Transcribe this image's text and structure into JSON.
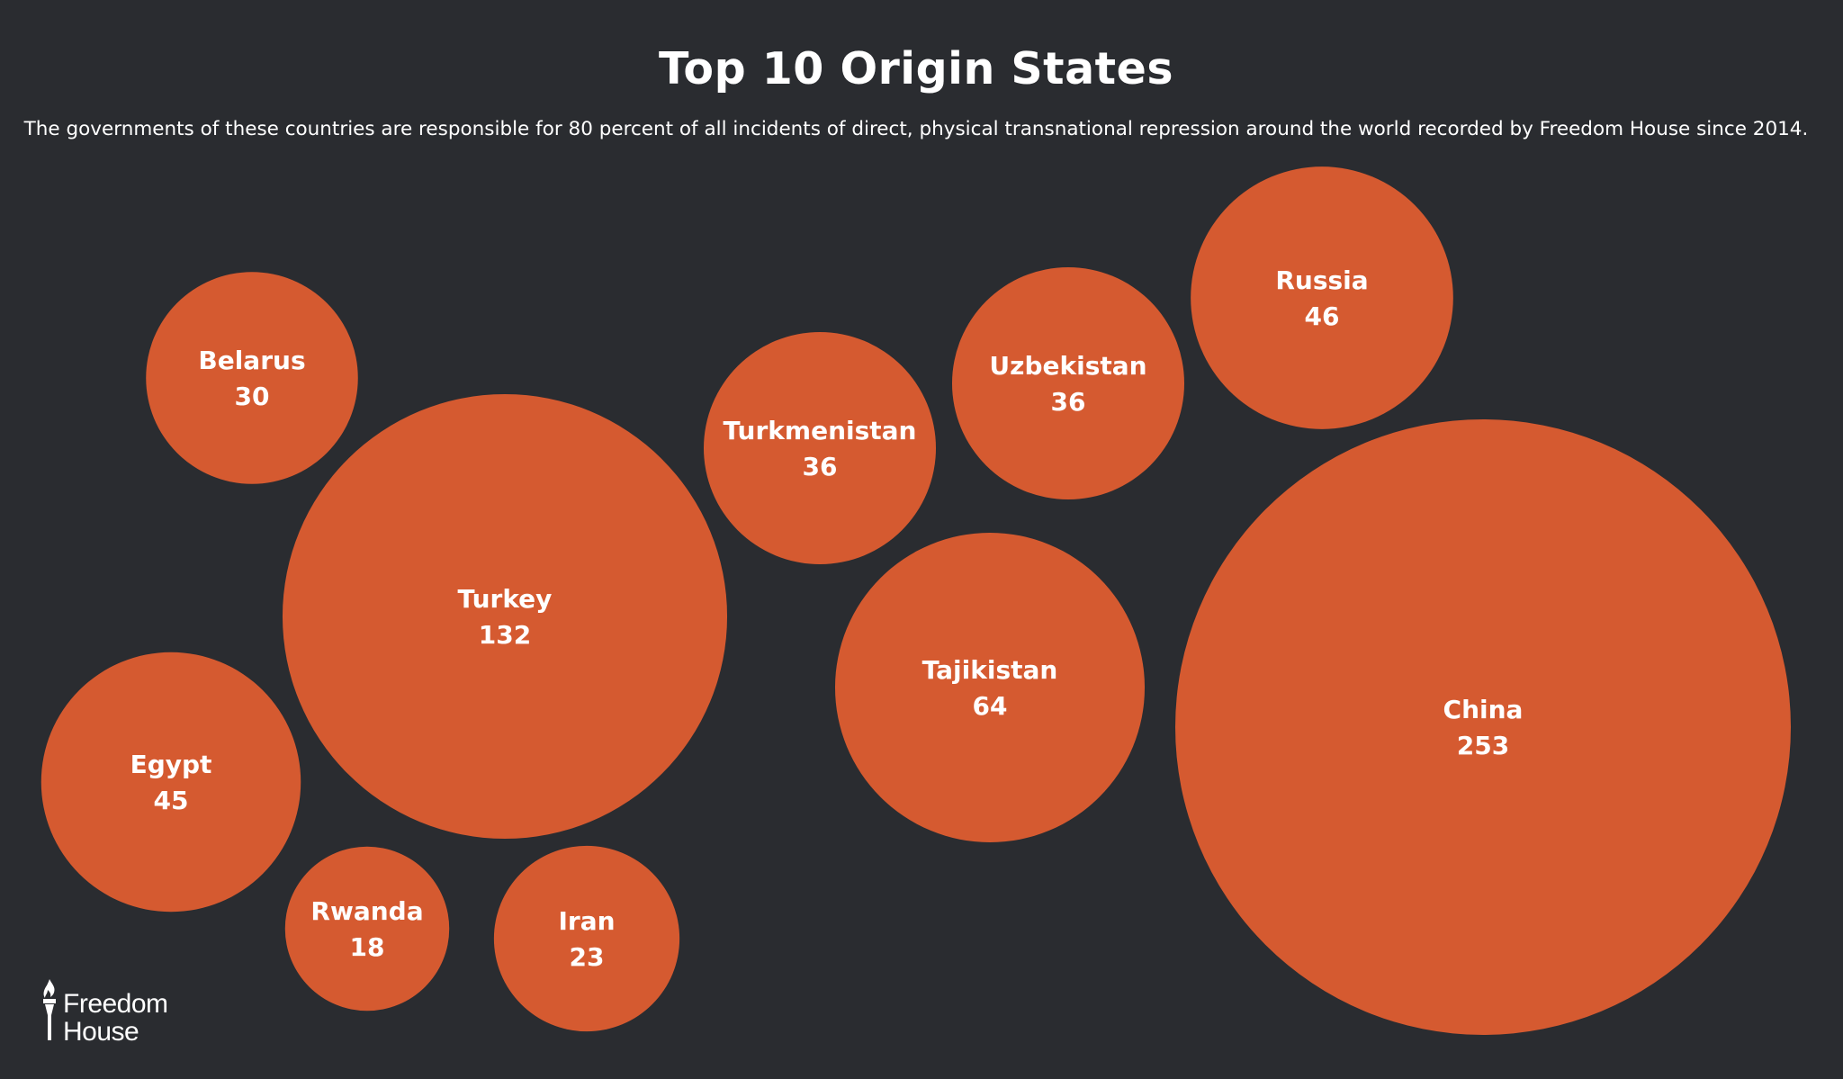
{
  "title": "Top 10 Origin States",
  "subtitle": "The governments of these countries are responsible for 80 percent of all incidents of direct, physical transnational repression around the world recorded by Freedom House since 2014.",
  "colors": {
    "background": "#2a2c30",
    "bubble": "#d55a30",
    "text": "#ffffff"
  },
  "logo": {
    "line1": "Freedom",
    "line2": "House",
    "icon": "torch-icon"
  },
  "chart_data": {
    "type": "bubble",
    "title": "Top 10 Origin States",
    "categories": [
      "China",
      "Turkey",
      "Tajikistan",
      "Russia",
      "Egypt",
      "Turkmenistan",
      "Uzbekistan",
      "Belarus",
      "Iran",
      "Rwanda"
    ],
    "values": [
      253,
      132,
      64,
      46,
      45,
      36,
      36,
      30,
      23,
      18
    ]
  }
}
